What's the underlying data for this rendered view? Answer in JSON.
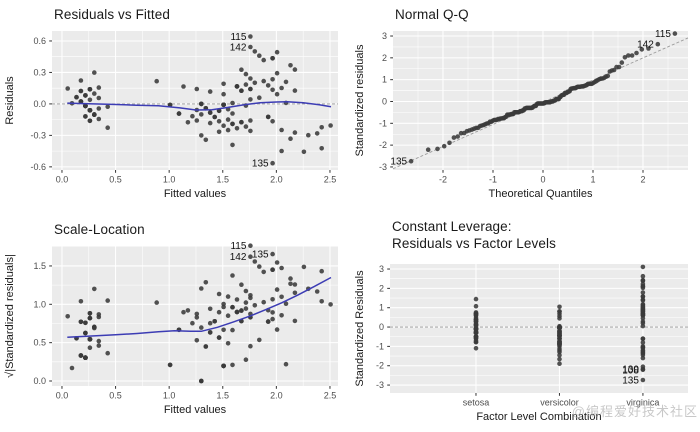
{
  "watermark": {
    "text": "@编程爱好技术社区"
  },
  "colors": {
    "panel_bg": "#EBEBEB",
    "grid_line": "#FFFFFF",
    "point": "#3A3A3A",
    "smooth_line": "#3C3CB4",
    "ref_line": "#9B9B9B",
    "title": "#1A1A1A",
    "tick_label": "#4D4D4D",
    "axis_title": "#1A1A1A",
    "obs_label": "#111111"
  },
  "chart_data": {
    "type": "scatter",
    "species_levels": [
      "setosa",
      "versicolor",
      "virginica"
    ],
    "sigma": 0.2065,
    "observations": [
      [
        0.219,
        -0.092,
        0,
        8
      ],
      [
        0.177,
        0.111,
        0,
        4
      ],
      [
        0.261,
        -0.295,
        0,
        7
      ],
      [
        0.344,
        0.271,
        0,
        1
      ],
      [
        0.219,
        0.392,
        0,
        3
      ],
      [
        0.261,
        -0.78,
        0,
        2
      ],
      [
        0.302,
        -0.494,
        0,
        5
      ],
      [
        0.219,
        -0.576,
        0,
        2
      ],
      [
        0.094,
        0.029,
        0,
        1
      ],
      [
        0.136,
        0.31,
        0,
        2
      ],
      [
        0.261,
        0.673,
        0,
        3
      ],
      [
        0.177,
        1.08,
        0,
        1
      ],
      [
        0.344,
        -0.213,
        0,
        1
      ],
      [
        0.261,
        0.189,
        0,
        1
      ],
      [
        0.344,
        -0.697,
        0,
        1
      ],
      [
        0.053,
        0.712,
        0,
        1
      ],
      [
        0.344,
        0.755,
        0,
        1
      ],
      [
        0.427,
        -1.099,
        0,
        1
      ],
      [
        0.302,
        0.475,
        0,
        1
      ],
      [
        0.177,
        0.596,
        0,
        2
      ],
      [
        0.302,
        1.443,
        0,
        1
      ],
      [
        0.427,
        -0.131,
        0,
        1
      ],
      [
        1.591,
        -0.925,
        1,
        2
      ],
      [
        1.508,
        -0.039,
        1,
        5
      ],
      [
        1.674,
        -0.843,
        1,
        2
      ],
      [
        1.3,
        0.0,
        1,
        3
      ],
      [
        1.55,
        -0.242,
        1,
        1
      ],
      [
        1.508,
        -1.007,
        1,
        1
      ],
      [
        1.591,
        0.044,
        1,
        1
      ],
      [
        1.009,
        -0.044,
        1,
        2
      ],
      [
        1.55,
        -1.211,
        1,
        1
      ],
      [
        1.258,
        0.688,
        1,
        1
      ],
      [
        1.092,
        -0.446,
        1,
        2
      ],
      [
        1.383,
        0.567,
        1,
        1
      ],
      [
        1.3,
        -1.453,
        1,
        1
      ],
      [
        1.134,
        0.804,
        1,
        1
      ],
      [
        1.466,
        -0.32,
        1,
        2
      ],
      [
        1.342,
        -1.656,
        1,
        1
      ],
      [
        1.258,
        -0.765,
        1,
        1
      ],
      [
        1.633,
        0.809,
        1,
        1
      ],
      [
        1.591,
        -1.893,
        1,
        1
      ],
      [
        1.425,
        -0.605,
        1,
        2
      ],
      [
        1.633,
        -1.128,
        1,
        1
      ],
      [
        1.716,
        -0.077,
        1,
        1
      ],
      [
        1.217,
        -0.567,
        1,
        1
      ],
      [
        1.175,
        -0.847,
        1,
        1
      ],
      [
        1.258,
        -0.281,
        1,
        1
      ],
      [
        1.758,
        -0.765,
        1,
        1
      ],
      [
        1.508,
        0.446,
        1,
        1
      ],
      [
        1.591,
        -0.441,
        1,
        1
      ],
      [
        1.466,
        -0.804,
        1,
        1
      ],
      [
        1.342,
        -0.203,
        1,
        2
      ],
      [
        1.466,
        -1.288,
        1,
        1
      ],
      [
        1.55,
        -0.726,
        1,
        1
      ],
      [
        1.3,
        -0.484,
        1,
        1
      ],
      [
        1.383,
        -0.402,
        1,
        2
      ],
      [
        1.383,
        -0.886,
        1,
        1
      ],
      [
        0.884,
        1.046,
        1,
        1
      ],
      [
        2.132,
        1.784,
        2,
        1
      ],
      [
        1.758,
        0.69,
        2,
        2
      ],
      [
        2.09,
        0.048,
        2,
        1
      ],
      [
        1.965,
        -0.801,
        2,
        1
      ],
      [
        2.049,
        0.733,
        2,
        1
      ],
      [
        2.381,
        -1.362,
        2,
        1
      ],
      [
        1.508,
        0.93,
        2,
        1
      ],
      [
        2.257,
        -2.211,
        2,
        1
      ],
      [
        2.049,
        -1.204,
        2,
        1
      ],
      [
        2.173,
        1.582,
        2,
        1
      ],
      [
        1.758,
        1.174,
        2,
        1
      ],
      [
        1.841,
        0.287,
        2,
        1
      ],
      [
        1.924,
        0.853,
        2,
        1
      ],
      [
        1.716,
        1.376,
        2,
        1
      ],
      [
        1.758,
        3.111,
        2,
        1
      ],
      [
        1.841,
        2.224,
        2,
        1
      ],
      [
        1.924,
        -0.6,
        2,
        2
      ],
      [
        2.423,
        -1.079,
        2,
        1
      ],
      [
        2.506,
        -0.998,
        2,
        1
      ],
      [
        1.716,
        -1.046,
        2,
        1
      ],
      [
        2.007,
        1.419,
        2,
        1
      ],
      [
        1.674,
        1.577,
        2,
        1
      ],
      [
        2.423,
        -2.048,
        2,
        1
      ],
      [
        1.674,
        0.609,
        2,
        2
      ],
      [
        2.007,
        0.45,
        2,
        1
      ],
      [
        2.132,
        -1.606,
        2,
        1
      ],
      [
        1.633,
        0.81,
        2,
        2
      ],
      [
        1.965,
        0.652,
        2,
        1
      ],
      [
        2.049,
        -2.172,
        2,
        1
      ],
      [
        2.173,
        -1.323,
        2,
        1
      ],
      [
        2.298,
        -1.444,
        2,
        1
      ],
      [
        1.965,
        1.136,
        2,
        1
      ],
      [
        1.758,
        -1.247,
        2,
        1
      ],
      [
        1.965,
        -2.738,
        2,
        1
      ],
      [
        2.173,
        0.614,
        2,
        1
      ],
      [
        1.965,
        2.105,
        2,
        2
      ],
      [
        1.882,
        1.055,
        2,
        1
      ],
      [
        1.758,
        2.627,
        2,
        1
      ],
      [
        2.09,
        1.016,
        2,
        1
      ],
      [
        2.007,
        2.387,
        2,
        1
      ],
      [
        1.799,
        2.426,
        2,
        1
      ],
      [
        1.716,
        0.892,
        2,
        1
      ],
      [
        1.799,
        0.973,
        2,
        1
      ],
      [
        1.882,
        2.023,
        2,
        1
      ],
      [
        1.758,
        0.206,
        2,
        1
      ]
    ],
    "panels": [
      {
        "id": "residuals-vs-fitted",
        "source": "residuals",
        "title": "Residuals vs Fitted",
        "xlabel": "Fitted values",
        "ylabel": "Residuals",
        "xlim": [
          -0.093,
          2.575
        ],
        "ylim": [
          -0.63,
          0.695
        ],
        "x_major": [
          0,
          0.5,
          1,
          1.5,
          2,
          2.5
        ],
        "x_tick_labels": [
          "0.0",
          "0.5",
          "1.0",
          "1.5",
          "2.0",
          "2.5"
        ],
        "x_minor": [
          0.25,
          0.75,
          1.25,
          1.75,
          2.25
        ],
        "y_major": [
          -0.6,
          -0.3,
          0,
          0.3,
          0.6
        ],
        "y_tick_labels": [
          "-0.6",
          "-0.3",
          "0.0",
          "0.3",
          "0.6"
        ],
        "y_minor": [
          -0.45,
          -0.15,
          0.15,
          0.45
        ],
        "refline": {
          "kind": "h",
          "y": 0
        },
        "smooth": [
          [
            0.05,
            0.008
          ],
          [
            0.25,
            0.002
          ],
          [
            0.43,
            -0.004
          ],
          [
            0.7,
            -0.012
          ],
          [
            0.9,
            -0.018
          ],
          [
            1.1,
            -0.038
          ],
          [
            1.25,
            -0.058
          ],
          [
            1.4,
            -0.055
          ],
          [
            1.55,
            -0.033
          ],
          [
            1.7,
            -0.008
          ],
          [
            1.85,
            0.012
          ],
          [
            2.0,
            0.018
          ],
          [
            2.1,
            0.02
          ],
          [
            2.25,
            0.012
          ],
          [
            2.4,
            -0.008
          ],
          [
            2.51,
            -0.028
          ]
        ],
        "point_labels": [
          {
            "text": "115",
            "x": 1.758,
            "y": 0.643
          },
          {
            "text": "142",
            "x": 1.758,
            "y": 0.543
          },
          {
            "text": "135",
            "x": 1.965,
            "y": -0.565
          }
        ]
      },
      {
        "id": "normal-qq",
        "source": "qq",
        "title": "Normal Q-Q",
        "xlabel": "Theoretical Quantiles",
        "ylabel": "Standardized residuals",
        "xlim": [
          -3.0,
          2.9
        ],
        "ylim": [
          -3.14,
          3.23
        ],
        "x_major": [
          -2,
          -1,
          0,
          1,
          2
        ],
        "x_tick_labels": [
          "-2",
          "-1",
          "0",
          "1",
          "2"
        ],
        "x_minor": [
          -2.5,
          -1.5,
          -0.5,
          0.5,
          1.5,
          2.5
        ],
        "y_major": [
          -3,
          -2,
          -1,
          0,
          1,
          2,
          3
        ],
        "y_tick_labels": [
          "-3",
          "-2",
          "-1",
          "0",
          "1",
          "2",
          "3"
        ],
        "y_minor": [
          -2.5,
          -1.5,
          -0.5,
          0.5,
          1.5,
          2.5
        ],
        "refline": {
          "kind": "ab",
          "a": -0.035,
          "b": 1.016
        },
        "smooth": null,
        "point_labels": [
          {
            "text": "115",
            "x": 2.638,
            "y": 3.111
          },
          {
            "text": "142",
            "x": 2.296,
            "y": 2.627
          },
          {
            "text": "135",
            "x": -2.638,
            "y": -2.738
          }
        ]
      },
      {
        "id": "scale-location",
        "source": "scale",
        "title": "Scale-Location",
        "xlabel": "Fitted values",
        "ylabel": "√|Standardized residuals|",
        "xlim": [
          -0.093,
          2.575
        ],
        "ylim": [
          -0.065,
          1.76
        ],
        "x_major": [
          0,
          0.5,
          1,
          1.5,
          2,
          2.5
        ],
        "x_tick_labels": [
          "0.0",
          "0.5",
          "1.0",
          "1.5",
          "2.0",
          "2.5"
        ],
        "x_minor": [
          0.25,
          0.75,
          1.25,
          1.75,
          2.25
        ],
        "y_major": [
          0,
          0.5,
          1,
          1.5
        ],
        "y_tick_labels": [
          "0.0",
          "0.5",
          "1.0",
          "1.5"
        ],
        "y_minor": [
          0.25,
          0.75,
          1.25,
          1.75
        ],
        "refline": null,
        "smooth": [
          [
            0.05,
            0.57
          ],
          [
            0.3,
            0.588
          ],
          [
            0.5,
            0.603
          ],
          [
            0.7,
            0.62
          ],
          [
            0.9,
            0.642
          ],
          [
            1.05,
            0.655
          ],
          [
            1.2,
            0.65
          ],
          [
            1.3,
            0.648
          ],
          [
            1.45,
            0.7
          ],
          [
            1.6,
            0.77
          ],
          [
            1.75,
            0.845
          ],
          [
            1.9,
            0.93
          ],
          [
            2.05,
            1.02
          ],
          [
            2.2,
            1.12
          ],
          [
            2.35,
            1.23
          ],
          [
            2.51,
            1.35
          ]
        ],
        "point_labels": [
          {
            "text": "115",
            "x": 1.758,
            "y": 1.764
          },
          {
            "text": "142",
            "x": 1.758,
            "y": 1.621
          },
          {
            "text": "135",
            "x": 1.965,
            "y": 1.655
          }
        ]
      },
      {
        "id": "constant-leverage",
        "source": "factor",
        "title": "Constant Leverage:",
        "title2": "Residuals vs Factor Levels",
        "xlabel": "Factor Level Combination",
        "ylabel": "Standardized Residuals",
        "x_categories": [
          "setosa",
          "versicolor",
          "virginica"
        ],
        "xlim": [
          -0.03,
          3.54
        ],
        "ylim": [
          -3.41,
          3.26
        ],
        "x_major": [
          1,
          2,
          3
        ],
        "x_tick_labels": [
          "setosa",
          "versicolor",
          "virginica"
        ],
        "x_minor": [],
        "y_major": [
          -3,
          -2,
          -1,
          0,
          1,
          2,
          3
        ],
        "y_tick_labels": [
          "-3",
          "-2",
          "-1",
          "0",
          "1",
          "2",
          "3"
        ],
        "y_minor": [
          -2.5,
          -1.5,
          -0.5,
          0.5,
          1.5,
          2.5
        ],
        "refline": {
          "kind": "h",
          "y": 0
        },
        "smooth": null,
        "point_labels": [
          {
            "text": "130",
            "x": 3,
            "y": -2.172
          },
          {
            "text": "108",
            "x": 3,
            "y": -2.211
          },
          {
            "text": "135",
            "x": 3,
            "y": -2.738
          }
        ]
      }
    ]
  }
}
